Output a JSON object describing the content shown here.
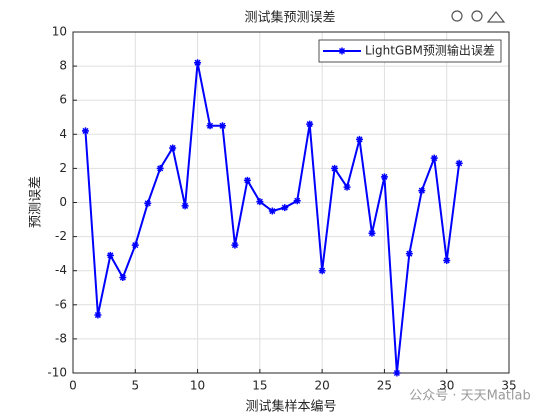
{
  "chart_data": {
    "type": "line",
    "title": "测试集预测误差",
    "xlabel": "测试集样本编号",
    "ylabel": "预测误差",
    "x": [
      1,
      2,
      3,
      4,
      5,
      6,
      7,
      8,
      9,
      10,
      11,
      12,
      13,
      14,
      15,
      16,
      17,
      18,
      19,
      20,
      21,
      22,
      23,
      24,
      25,
      26,
      27,
      28,
      29,
      30,
      31
    ],
    "series": [
      {
        "name": "LightGBM预测输出误差",
        "color": "#0000ff",
        "values": [
          4.2,
          -6.6,
          -3.1,
          -4.4,
          -2.5,
          -0.05,
          2.0,
          3.2,
          -0.2,
          8.2,
          4.5,
          4.5,
          -2.5,
          1.3,
          0.05,
          -0.5,
          -0.3,
          0.1,
          4.6,
          -4.0,
          2.0,
          0.9,
          3.7,
          -1.8,
          1.5,
          -10,
          -3.0,
          0.7,
          2.6,
          -3.4,
          2.3
        ]
      }
    ],
    "xlim": [
      0,
      35
    ],
    "xticks": [
      0,
      5,
      10,
      15,
      20,
      25,
      30,
      35
    ],
    "ylim": [
      -10,
      10
    ],
    "yticks": [
      -10,
      -8,
      -6,
      -4,
      -2,
      0,
      2,
      4,
      6,
      8,
      10
    ],
    "grid": true,
    "legend_position": "upper-right",
    "watermark": "公众号 · 天天Matlab"
  }
}
